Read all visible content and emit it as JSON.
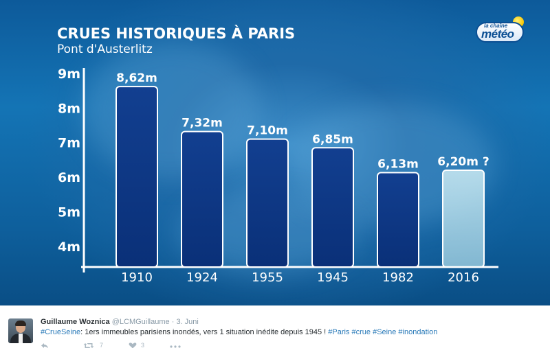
{
  "chart": {
    "title": "CRUES HISTORIQUES À PARIS",
    "subtitle": "Pont d'Austerlitz"
  },
  "logo": {
    "small": "la chaîne",
    "main": "météo"
  },
  "colors": {
    "bar": "#0d3a8a",
    "bar_highlight": "#bfe3ef",
    "axis": "#ffffff",
    "text": "#ffffff",
    "hashtag": "#2b7bb9"
  },
  "chart_data": {
    "type": "bar",
    "title": "CRUES HISTORIQUES À PARIS",
    "subtitle": "Pont d'Austerlitz",
    "categories": [
      "1910",
      "1924",
      "1955",
      "1945",
      "1982",
      "2016"
    ],
    "values": [
      8.62,
      7.32,
      7.1,
      6.85,
      6.13,
      6.2
    ],
    "data_labels": [
      "8,62m",
      "7,32m",
      "7,10m",
      "6,85m",
      "6,13m",
      "6,20m ?"
    ],
    "y_ticks": [
      "4m",
      "5m",
      "6m",
      "7m",
      "8m",
      "9m"
    ],
    "y_tick_values": [
      4,
      5,
      6,
      7,
      8,
      9
    ],
    "ylim": [
      3.4,
      9
    ],
    "xlabel": "",
    "ylabel": "",
    "grid": false,
    "highlight_category": "2016"
  },
  "tweet": {
    "author_name": "Guillaume Woznica",
    "author_handle": "@LCMGuillaume",
    "separator": "·",
    "date": "3. Juni",
    "text_parts": [
      {
        "text": "#CrueSeine",
        "tag": true
      },
      {
        "text": ": 1ers immeubles parisiens inondés, vers 1 situation inédite depuis 1945 ! ",
        "tag": false
      },
      {
        "text": "#Paris",
        "tag": true
      },
      {
        "text": " ",
        "tag": false
      },
      {
        "text": "#crue",
        "tag": true
      },
      {
        "text": " ",
        "tag": false
      },
      {
        "text": "#Seine",
        "tag": true
      },
      {
        "text": " ",
        "tag": false
      },
      {
        "text": "#inondation",
        "tag": true
      }
    ],
    "retweet_count": "7",
    "like_count": "3"
  },
  "icons": {
    "reply": "reply-icon",
    "retweet": "retweet-icon",
    "like": "like-icon",
    "more": "more-icon"
  }
}
